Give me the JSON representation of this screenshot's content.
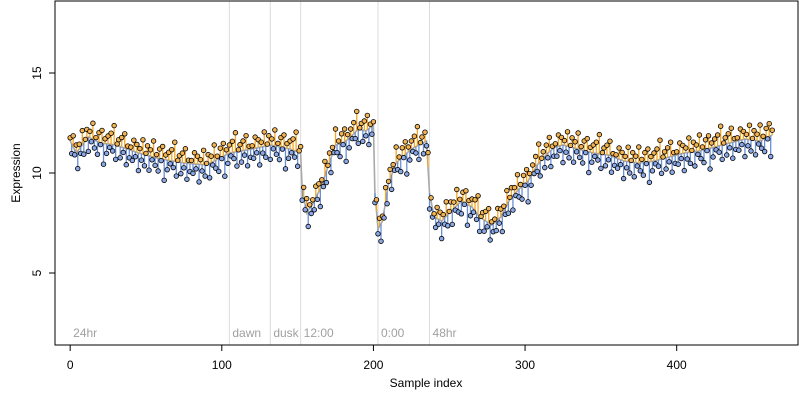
{
  "chart_data": {
    "type": "line",
    "xlabel": "Sample index",
    "ylabel": "Expression",
    "xlim": [
      -10,
      480
    ],
    "ylim": [
      1.4,
      18.6
    ],
    "x_ticks": [
      "0",
      "100",
      "200",
      "300",
      "400"
    ],
    "x_tick_values": [
      0,
      100,
      200,
      300,
      400
    ],
    "y_ticks": [
      "5",
      "10",
      "15"
    ],
    "y_tick_values": [
      5,
      10,
      15
    ],
    "grid": false,
    "segment_markers": [
      {
        "x": 0,
        "label": "24hr",
        "line": false
      },
      {
        "x": 105,
        "label": "dawn",
        "line": true
      },
      {
        "x": 132,
        "label": "dusk",
        "line": true
      },
      {
        "x": 152,
        "label": "12:00",
        "line": true
      },
      {
        "x": 203,
        "label": "0:00",
        "line": true
      },
      {
        "x": 237,
        "label": "48hr",
        "line": true
      }
    ],
    "series": [
      {
        "style": "points",
        "color_above_trend": "#f5a623",
        "color_below_trend": "#6a8fd8",
        "trend_color": "#a9a9a9",
        "anchors": [
          [
            0,
            11.6
          ],
          [
            4,
            11.0
          ],
          [
            8,
            11.4
          ],
          [
            12,
            11.8
          ],
          [
            20,
            11.5
          ],
          [
            30,
            11.4
          ],
          [
            45,
            11.0
          ],
          [
            60,
            10.7
          ],
          [
            75,
            10.5
          ],
          [
            90,
            10.4
          ],
          [
            100,
            10.8
          ],
          [
            105,
            11.0
          ],
          [
            120,
            11.2
          ],
          [
            132,
            11.4
          ],
          [
            145,
            11.2
          ],
          [
            152,
            11.0
          ],
          [
            153,
            9.2
          ],
          [
            156,
            8.0
          ],
          [
            160,
            8.5
          ],
          [
            165,
            9.2
          ],
          [
            170,
            10.3
          ],
          [
            175,
            11.4
          ],
          [
            180,
            11.5
          ],
          [
            185,
            11.8
          ],
          [
            190,
            12.2
          ],
          [
            195,
            12.1
          ],
          [
            200,
            12.4
          ],
          [
            201,
            9.0
          ],
          [
            203,
            7.2
          ],
          [
            206,
            7.6
          ],
          [
            210,
            9.5
          ],
          [
            215,
            10.5
          ],
          [
            225,
            11.2
          ],
          [
            235,
            11.6
          ],
          [
            237,
            9.0
          ],
          [
            240,
            7.8
          ],
          [
            245,
            7.6
          ],
          [
            250,
            8.0
          ],
          [
            258,
            8.6
          ],
          [
            265,
            8.3
          ],
          [
            270,
            7.8
          ],
          [
            278,
            7.4
          ],
          [
            284,
            7.8
          ],
          [
            290,
            8.7
          ],
          [
            296,
            9.2
          ],
          [
            302,
            9.6
          ],
          [
            308,
            10.4
          ],
          [
            315,
            11.0
          ],
          [
            320,
            11.3
          ],
          [
            325,
            11.4
          ],
          [
            335,
            11.2
          ],
          [
            345,
            11.0
          ],
          [
            355,
            10.9
          ],
          [
            365,
            10.6
          ],
          [
            375,
            10.5
          ],
          [
            385,
            10.6
          ],
          [
            395,
            10.8
          ],
          [
            405,
            11.0
          ],
          [
            415,
            11.1
          ],
          [
            425,
            11.3
          ],
          [
            435,
            11.5
          ],
          [
            445,
            11.7
          ],
          [
            455,
            11.6
          ],
          [
            463,
            11.9
          ]
        ],
        "n": 463,
        "jitter": [
          0.2,
          -0.6,
          0.7,
          -0.3,
          0.5,
          -1.1,
          0.3,
          -0.4,
          0.9,
          -0.7,
          0.1,
          0.6,
          -0.9,
          0.4,
          -0.2,
          1.0,
          -0.5,
          0.2,
          -0.8,
          0.6,
          -0.1,
          0.8,
          -1.3,
          0.3,
          -0.6,
          0.5,
          -0.2,
          0.7,
          -0.4,
          1.2,
          -0.9,
          0.1,
          0.4,
          -0.7,
          0.6,
          -0.3,
          0.9,
          -1.0,
          0.2,
          -0.5
        ]
      }
    ]
  }
}
